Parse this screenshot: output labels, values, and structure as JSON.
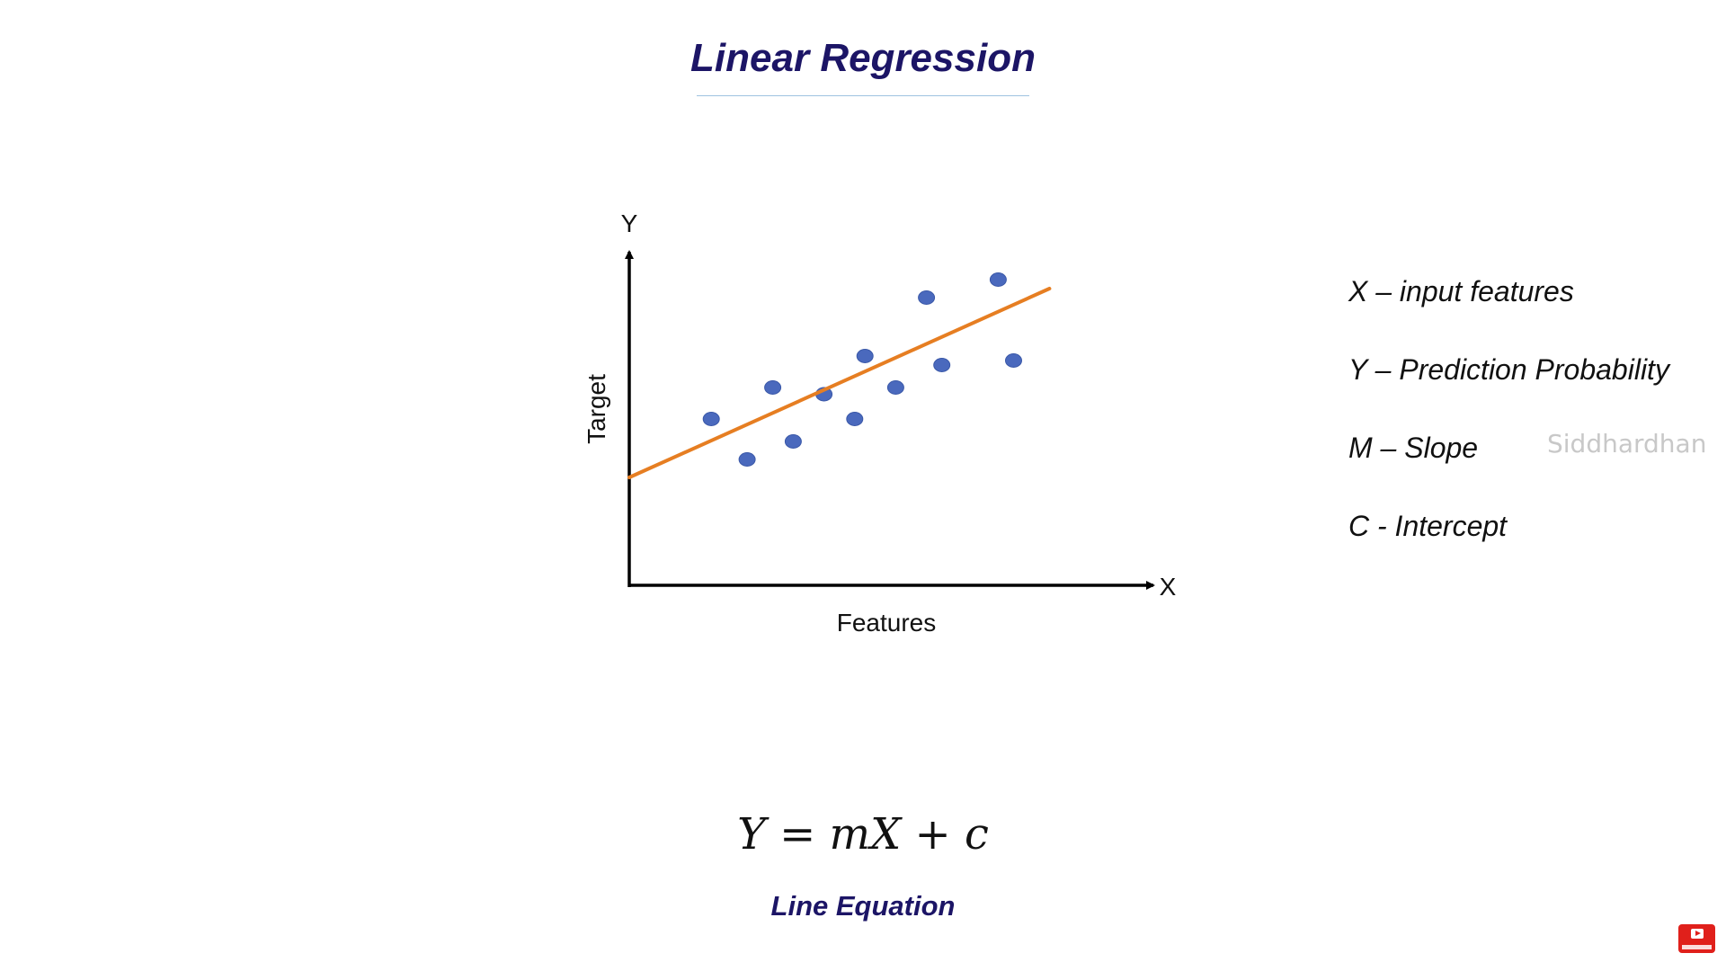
{
  "slide": {
    "title": "Linear Regression",
    "legend": [
      "X – input features",
      "Y – Prediction Probability",
      "M – Slope",
      "C - Intercept"
    ],
    "watermark": "Siddhardhan",
    "equation": "Y = mX + c",
    "equation_caption": "Line Equation",
    "subscribe_icon": "youtube-subscribe-icon"
  },
  "chart_data": {
    "type": "scatter",
    "xlabel": "Features",
    "ylabel": "Target",
    "x_axis_letter": "X",
    "y_axis_letter": "Y",
    "points": [
      {
        "x": 1.6,
        "y": 3.7
      },
      {
        "x": 2.3,
        "y": 2.8
      },
      {
        "x": 2.8,
        "y": 4.4
      },
      {
        "x": 3.2,
        "y": 3.2
      },
      {
        "x": 3.8,
        "y": 4.25
      },
      {
        "x": 4.4,
        "y": 3.7
      },
      {
        "x": 4.6,
        "y": 5.1
      },
      {
        "x": 5.2,
        "y": 4.4
      },
      {
        "x": 5.8,
        "y": 6.4
      },
      {
        "x": 6.1,
        "y": 4.9
      },
      {
        "x": 7.2,
        "y": 6.8
      },
      {
        "x": 7.5,
        "y": 5.0
      }
    ],
    "fit_line": {
      "x1": 0,
      "y1": 2.4,
      "x2": 8.2,
      "y2": 6.6
    },
    "xlim": [
      0,
      10
    ],
    "ylim": [
      0,
      8
    ],
    "colors": {
      "points": "#4a69bd",
      "fit_line": "#e67e22",
      "axis": "#000000"
    },
    "grid": false
  }
}
